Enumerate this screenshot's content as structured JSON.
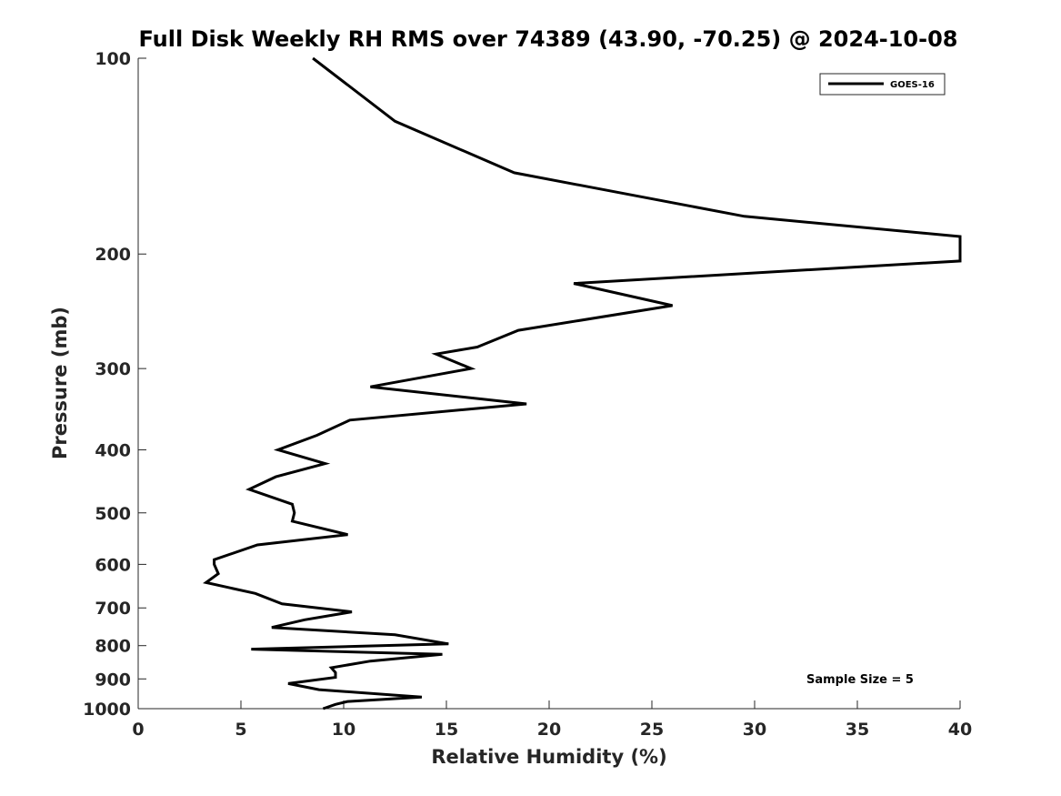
{
  "chart_data": {
    "type": "line",
    "title": "Full Disk Weekly RH RMS over 74389 (43.90, -70.25) @ 2024-10-08",
    "xlabel": "Relative Humidity (%)",
    "ylabel": "Pressure (mb)",
    "xlim": [
      0,
      40
    ],
    "ylim": [
      100,
      1000
    ],
    "y_scale": "log",
    "y_reversed": true,
    "grid": false,
    "legend_position": "top-right",
    "x_ticks": [
      0,
      5,
      10,
      15,
      20,
      25,
      30,
      35,
      40
    ],
    "y_ticks": [
      100,
      200,
      300,
      400,
      500,
      600,
      700,
      800,
      900,
      1000
    ],
    "annotation": "Sample Size = 5",
    "series": [
      {
        "name": "GOES-16",
        "color": "#000000",
        "points": [
          [
            8.5,
            100
          ],
          [
            12.5,
            125
          ],
          [
            18.3,
            150
          ],
          [
            29.5,
            175
          ],
          [
            40,
            188
          ],
          [
            40,
            205
          ],
          [
            21.2,
            222
          ],
          [
            26.0,
            240
          ],
          [
            18.5,
            262
          ],
          [
            16.5,
            278
          ],
          [
            14.5,
            285
          ],
          [
            16.2,
            300
          ],
          [
            11.3,
            320
          ],
          [
            18.9,
            340
          ],
          [
            10.3,
            360
          ],
          [
            8.7,
            380
          ],
          [
            6.8,
            400
          ],
          [
            9.1,
            420
          ],
          [
            6.7,
            440
          ],
          [
            5.4,
            460
          ],
          [
            7.5,
            485
          ],
          [
            7.6,
            500
          ],
          [
            7.5,
            515
          ],
          [
            10.2,
            540
          ],
          [
            5.8,
            560
          ],
          [
            3.7,
            590
          ],
          [
            3.7,
            600
          ],
          [
            3.9,
            620
          ],
          [
            3.3,
            640
          ],
          [
            5.7,
            665
          ],
          [
            7.0,
            690
          ],
          [
            10.4,
            710
          ],
          [
            8.1,
            730
          ],
          [
            6.5,
            750
          ],
          [
            12.5,
            770
          ],
          [
            15.1,
            795
          ],
          [
            5.5,
            810
          ],
          [
            14.8,
            825
          ],
          [
            11.3,
            845
          ],
          [
            9.4,
            865
          ],
          [
            9.6,
            880
          ],
          [
            9.6,
            895
          ],
          [
            7.3,
            915
          ],
          [
            8.8,
            935
          ],
          [
            13.8,
            960
          ],
          [
            10.2,
            975
          ],
          [
            9.6,
            985
          ],
          [
            9.0,
            1000
          ]
        ]
      }
    ]
  }
}
